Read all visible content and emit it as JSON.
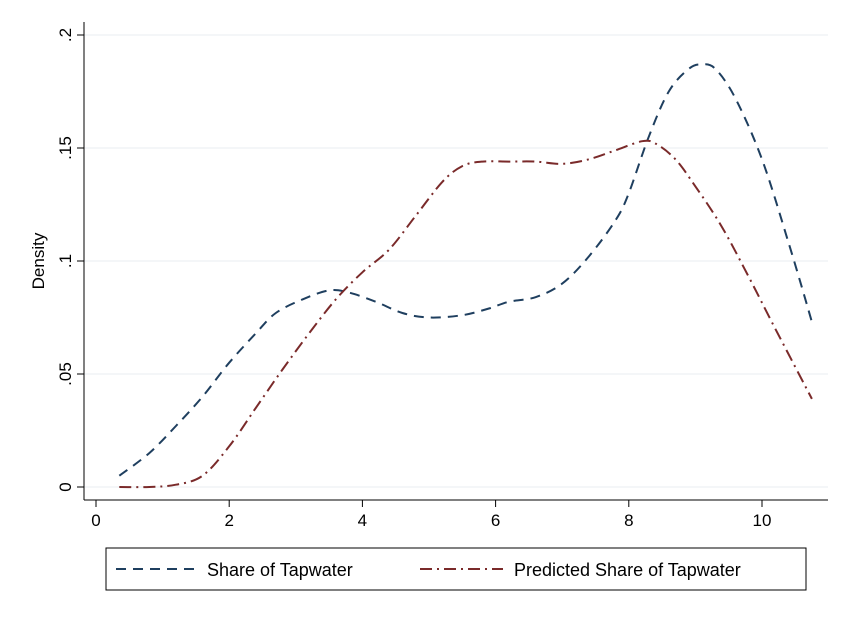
{
  "chart_data": {
    "type": "line",
    "title": "",
    "xlabel": "",
    "ylabel": "Density",
    "xlim": [
      0,
      11
    ],
    "ylim": [
      0,
      0.2
    ],
    "x_ticks": [
      0,
      2,
      4,
      6,
      8,
      10
    ],
    "x_tick_labels": [
      "0",
      "2",
      "4",
      "6",
      "8",
      "10"
    ],
    "y_ticks": [
      0,
      0.05,
      0.1,
      0.15,
      0.2
    ],
    "y_tick_labels": [
      "0",
      ".05",
      ".1",
      ".15",
      ".2"
    ],
    "grid": "horizontal",
    "legend_position": "bottom",
    "series": [
      {
        "name": "Share of Tapwater",
        "color": "#1f3f5f",
        "dash": "dashed",
        "x": [
          0.35,
          0.8,
          1.2,
          1.6,
          2.0,
          2.4,
          2.7,
          3.1,
          3.5,
          3.8,
          4.2,
          4.6,
          5.0,
          5.5,
          5.9,
          6.2,
          6.6,
          7.0,
          7.4,
          7.8,
          8.0,
          8.3,
          8.6,
          8.9,
          9.1,
          9.3,
          9.6,
          10.0,
          10.4,
          10.75
        ],
        "y": [
          0.005,
          0.015,
          0.027,
          0.04,
          0.055,
          0.068,
          0.077,
          0.083,
          0.087,
          0.086,
          0.082,
          0.077,
          0.075,
          0.076,
          0.079,
          0.082,
          0.084,
          0.09,
          0.102,
          0.118,
          0.13,
          0.155,
          0.175,
          0.185,
          0.187,
          0.185,
          0.172,
          0.145,
          0.108,
          0.073
        ]
      },
      {
        "name": "Predicted Share of Tapwater",
        "color": "#7a2a2a",
        "dash": "dashdot",
        "x": [
          0.35,
          0.8,
          1.2,
          1.6,
          2.0,
          2.4,
          2.8,
          3.2,
          3.6,
          4.0,
          4.4,
          4.8,
          5.2,
          5.5,
          5.8,
          6.2,
          6.6,
          7.0,
          7.4,
          7.8,
          8.2,
          8.4,
          8.7,
          9.0,
          9.4,
          9.8,
          10.2,
          10.75
        ],
        "y": [
          0.0,
          0.0,
          0.001,
          0.005,
          0.018,
          0.035,
          0.052,
          0.068,
          0.083,
          0.095,
          0.105,
          0.12,
          0.135,
          0.142,
          0.144,
          0.144,
          0.144,
          0.143,
          0.145,
          0.149,
          0.153,
          0.152,
          0.145,
          0.133,
          0.115,
          0.093,
          0.07,
          0.039
        ]
      }
    ]
  }
}
